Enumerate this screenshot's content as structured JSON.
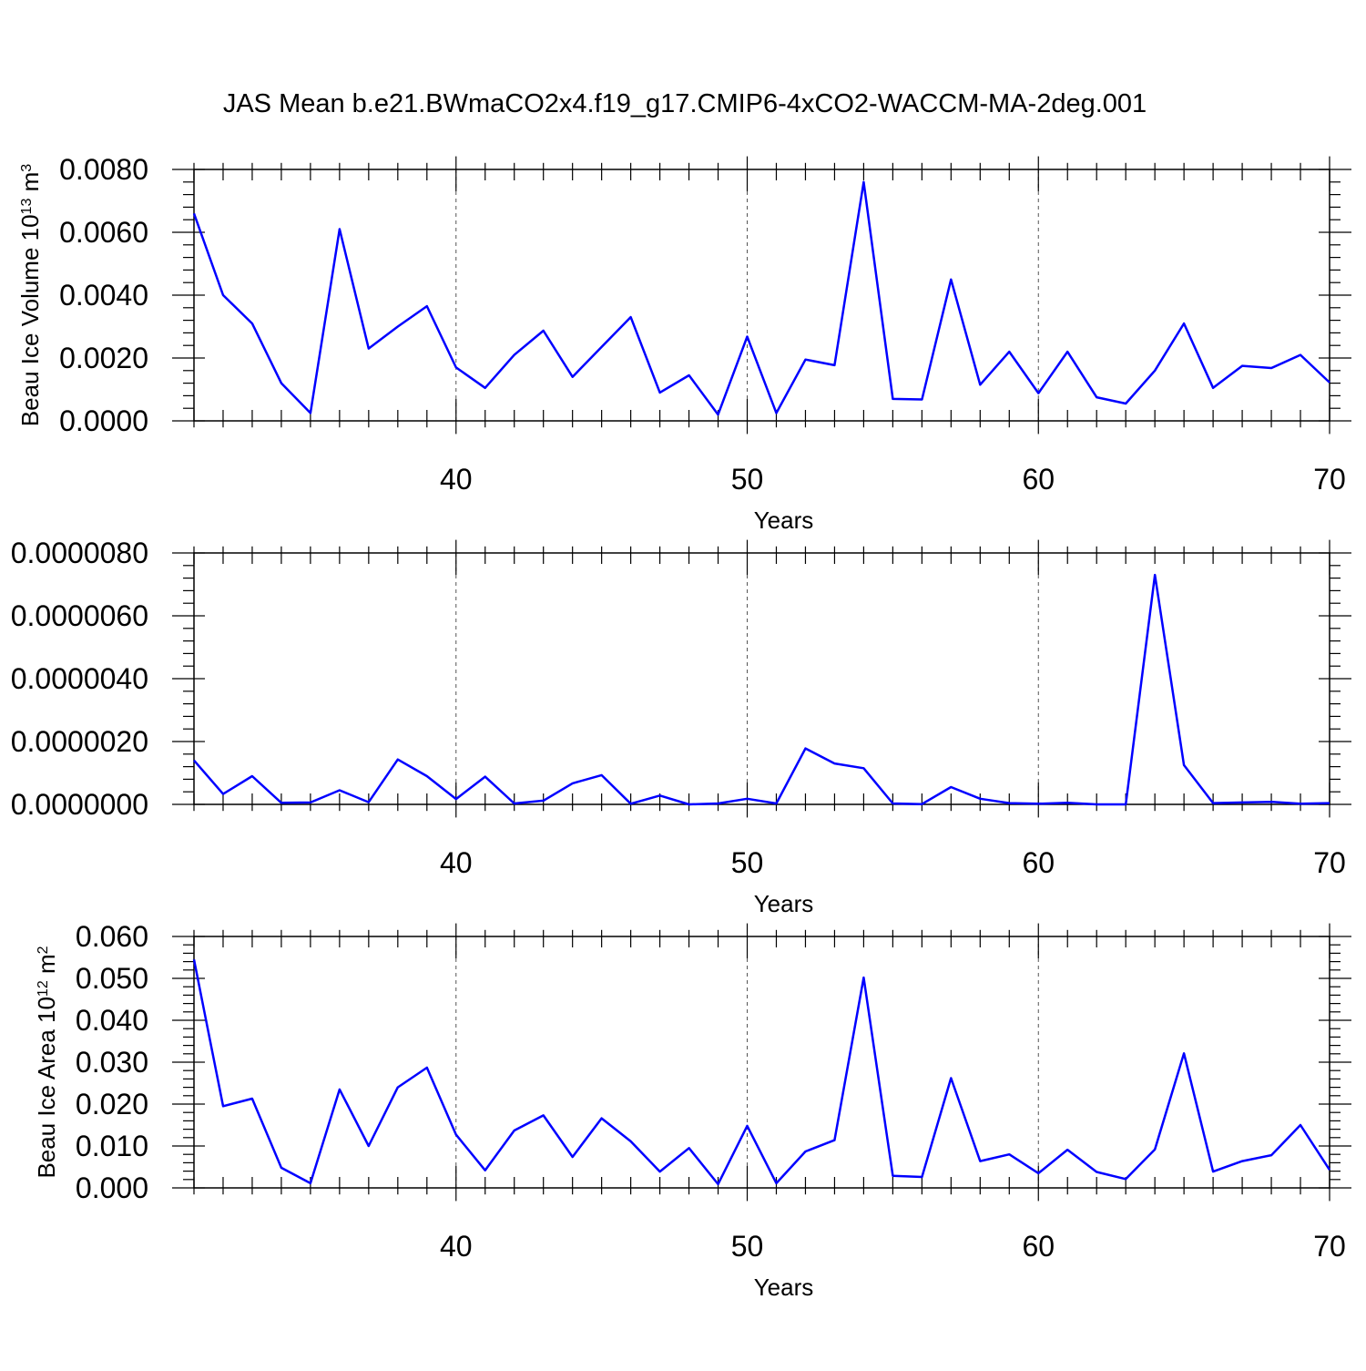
{
  "title": "JAS Mean b.e21.BWmaCO2x4.f19_g17.CMIP6-4xCO2-WACCM-MA-2deg.001",
  "colors": {
    "line": "#0000ff",
    "axis": "#000000",
    "grid": "#555555"
  },
  "chart_data": [
    {
      "type": "line",
      "xlabel": "Years",
      "ylabel": {
        "text": "Beau Ice Volume 10",
        "sup": "13",
        "unit": " m",
        "unit_sup": "3"
      },
      "xlim": [
        31,
        70
      ],
      "ylim": [
        0,
        0.008
      ],
      "xticks": [
        40,
        50,
        60,
        70
      ],
      "xtick_labels": [
        "40",
        "50",
        "60",
        "70"
      ],
      "yticks": [
        0,
        0.002,
        0.004,
        0.006,
        0.008
      ],
      "ytick_labels": [
        "0.0000",
        "0.0020",
        "0.0040",
        "0.0060",
        "0.0080"
      ],
      "grid_x": [
        40,
        50,
        60
      ],
      "x": [
        31,
        32,
        33,
        34,
        35,
        36,
        37,
        38,
        39,
        40,
        41,
        42,
        43,
        44,
        45,
        46,
        47,
        48,
        49,
        50,
        51,
        52,
        53,
        54,
        55,
        56,
        57,
        58,
        59,
        60,
        61,
        62,
        63,
        64,
        65,
        66,
        67,
        68,
        69,
        70
      ],
      "values": [
        0.0066,
        0.004,
        0.0031,
        0.0012,
        0.00025,
        0.0061,
        0.0023,
        0.003,
        0.00365,
        0.0017,
        0.00105,
        0.0021,
        0.00287,
        0.0014,
        0.00235,
        0.0033,
        0.0009,
        0.00145,
        0.0002,
        0.00268,
        0.00025,
        0.00195,
        0.00177,
        0.0076,
        0.0007,
        0.00068,
        0.0045,
        0.00115,
        0.0022,
        0.00088,
        0.0022,
        0.00075,
        0.00055,
        0.0016,
        0.0031,
        0.00105,
        0.00175,
        0.00168,
        0.0021,
        0.00122
      ]
    },
    {
      "type": "line",
      "xlabel": "Years",
      "ylabel": null,
      "xlim": [
        31,
        70
      ],
      "ylim": [
        0,
        8e-06
      ],
      "xticks": [
        40,
        50,
        60,
        70
      ],
      "xtick_labels": [
        "40",
        "50",
        "60",
        "70"
      ],
      "yticks": [
        0,
        2e-06,
        4e-06,
        6e-06,
        8e-06
      ],
      "ytick_labels": [
        "0.0000000",
        "0.0000020",
        "0.0000040",
        "0.0000060",
        "0.0000080"
      ],
      "grid_x": [
        40,
        50,
        60
      ],
      "x": [
        31,
        32,
        33,
        34,
        35,
        36,
        37,
        38,
        39,
        40,
        41,
        42,
        43,
        44,
        45,
        46,
        47,
        48,
        49,
        50,
        51,
        52,
        53,
        54,
        55,
        56,
        57,
        58,
        59,
        60,
        61,
        62,
        63,
        64,
        65,
        66,
        67,
        68,
        69,
        70
      ],
      "values": [
        1.4e-06,
        3.3e-07,
        9e-07,
        5e-08,
        6e-08,
        4.5e-07,
        7e-08,
        1.43e-06,
        9e-07,
        1.7e-07,
        8.8e-07,
        3e-08,
        1.2e-07,
        6.7e-07,
        9.3e-07,
        2e-08,
        2.8e-07,
        0.0,
        3e-08,
        1.8e-07,
        3e-08,
        1.78e-06,
        1.3e-06,
        1.15e-06,
        3e-08,
        1e-08,
        5.5e-07,
        1.8e-07,
        4e-08,
        2e-08,
        5e-08,
        0.0,
        0.0,
        7.3e-06,
        1.25e-06,
        4e-08,
        6e-08,
        8e-08,
        2e-08,
        4e-08
      ]
    },
    {
      "type": "line",
      "xlabel": "Years",
      "ylabel": {
        "text": "Beau Ice Area 10",
        "sup": "12",
        "unit": " m",
        "unit_sup": "2"
      },
      "xlim": [
        31,
        70
      ],
      "ylim": [
        0,
        0.06
      ],
      "xticks": [
        40,
        50,
        60,
        70
      ],
      "xtick_labels": [
        "40",
        "50",
        "60",
        "70"
      ],
      "yticks": [
        0,
        0.01,
        0.02,
        0.03,
        0.04,
        0.05,
        0.06
      ],
      "ytick_labels": [
        "0.000",
        "0.010",
        "0.020",
        "0.030",
        "0.040",
        "0.050",
        "0.060"
      ],
      "grid_x": [
        40,
        50,
        60
      ],
      "x": [
        31,
        32,
        33,
        34,
        35,
        36,
        37,
        38,
        39,
        40,
        41,
        42,
        43,
        44,
        45,
        46,
        47,
        48,
        49,
        50,
        51,
        52,
        53,
        54,
        55,
        56,
        57,
        58,
        59,
        60,
        61,
        62,
        63,
        64,
        65,
        66,
        67,
        68,
        69,
        70
      ],
      "values": [
        0.0545,
        0.0195,
        0.0213,
        0.0048,
        0.0011,
        0.0235,
        0.01,
        0.024,
        0.0287,
        0.0127,
        0.0042,
        0.0137,
        0.0173,
        0.0074,
        0.0166,
        0.0111,
        0.0039,
        0.0095,
        0.0009,
        0.0148,
        0.0011,
        0.0087,
        0.0114,
        0.0502,
        0.0029,
        0.0026,
        0.0262,
        0.0064,
        0.008,
        0.0035,
        0.0091,
        0.0038,
        0.0021,
        0.0092,
        0.0321,
        0.0039,
        0.0064,
        0.0078,
        0.015,
        0.0043
      ]
    }
  ]
}
